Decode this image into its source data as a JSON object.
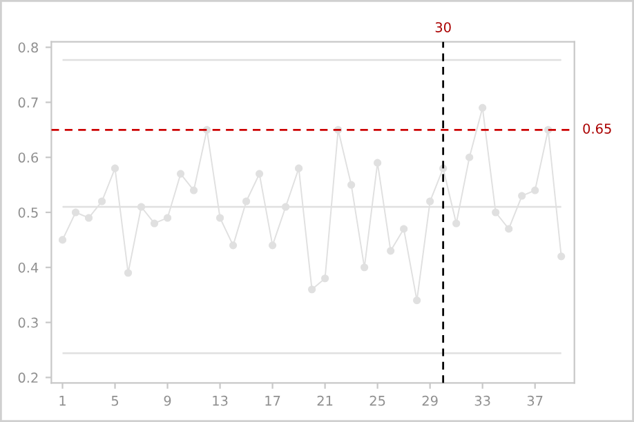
{
  "chart_data": {
    "type": "line",
    "x": [
      1,
      2,
      3,
      4,
      5,
      6,
      7,
      8,
      9,
      10,
      11,
      12,
      13,
      14,
      15,
      16,
      17,
      18,
      19,
      20,
      21,
      22,
      23,
      24,
      25,
      26,
      27,
      28,
      29,
      30,
      31,
      32,
      33,
      34,
      35,
      36,
      37,
      38,
      39
    ],
    "series": [
      {
        "color": "#e0e0e0",
        "values": [
          0.45,
          0.5,
          0.49,
          0.52,
          0.58,
          0.39,
          0.51,
          0.48,
          0.49,
          0.57,
          0.54,
          0.65,
          0.49,
          0.44,
          0.52,
          0.57,
          0.44,
          0.51,
          0.58,
          0.36,
          0.38,
          0.65,
          0.55,
          0.4,
          0.59,
          0.43,
          0.47,
          0.34,
          0.52,
          0.58,
          0.48,
          0.6,
          0.69,
          0.5,
          0.47,
          0.53,
          0.54,
          0.65,
          0.42
        ]
      }
    ],
    "marker": "circle",
    "line_style": "solid",
    "grid": false,
    "xlim": [
      0.15,
      40
    ],
    "xticks": [
      1,
      5,
      9,
      13,
      17,
      21,
      25,
      29,
      33,
      37
    ],
    "ylim": [
      0.19,
      0.81
    ],
    "yticks": [
      0.2,
      0.3,
      0.4,
      0.5,
      0.6,
      0.7,
      0.8
    ],
    "ref_lines": [
      {
        "axis": "y",
        "value": 0.777,
        "label": null,
        "color": "#e0e0e0",
        "line_style": "solid"
      },
      {
        "axis": "y",
        "value": 0.51,
        "label": null,
        "color": "#e0e0e0",
        "line_style": "solid"
      },
      {
        "axis": "y",
        "value": 0.244,
        "label": null,
        "color": "#e0e0e0",
        "line_style": "solid"
      },
      {
        "axis": "y",
        "value": 0.65,
        "label": "0.65",
        "color": "#cc0000",
        "line_style": "dashed"
      },
      {
        "axis": "x",
        "value": 30,
        "label": "30",
        "color": "#000000",
        "line_style": "dashed"
      }
    ]
  }
}
